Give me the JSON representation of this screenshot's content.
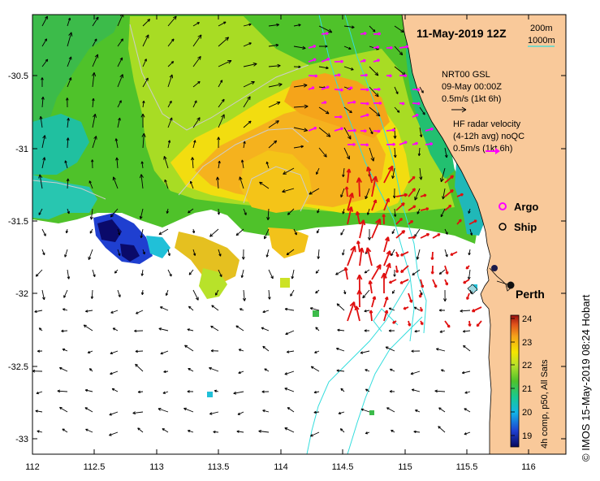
{
  "title": "11-May-2019 12Z",
  "contours": {
    "label_200": "200m",
    "label_1000": "1000m",
    "color_200": "#cccccc",
    "color_1000": "#33dddd"
  },
  "gsl": {
    "line1": "NRT00 GSL",
    "line2": "09-May 00:00Z",
    "scale": "0.5m/s (1kt 6h)"
  },
  "radar": {
    "line1": "HF radar velocity",
    "line2": "(4-12h avg) noQC",
    "scale": "0.5m/s (1kt 6h)",
    "color": "#ff00ff"
  },
  "legend": {
    "argo": "Argo",
    "ship": "Ship"
  },
  "city": {
    "name": "Perth",
    "lon": 115.86,
    "lat": -31.95
  },
  "colorbar": {
    "label": "4h comp, p50, All Sats",
    "ticks": [
      "24",
      "23",
      "22",
      "21",
      "20",
      "19"
    ],
    "min": 18.6,
    "max": 24.2
  },
  "axes": {
    "x_ticks": [
      "112",
      "112.5",
      "113",
      "113.5",
      "114",
      "114.5",
      "115",
      "115.5",
      "116"
    ],
    "y_ticks": [
      "-30.5",
      "-31",
      "-31.5",
      "-32",
      "-32.5",
      "-33"
    ],
    "xlim": [
      112.0,
      116.3
    ],
    "ylim": [
      -33.1,
      -30.1
    ]
  },
  "credit": "© IMOS 15-May-2019 08:24 Hobart",
  "colors": {
    "land": "#f9c99a",
    "ocean": "#ffffff",
    "arrows": "#000000",
    "radar_arrows": "#e01010"
  }
}
